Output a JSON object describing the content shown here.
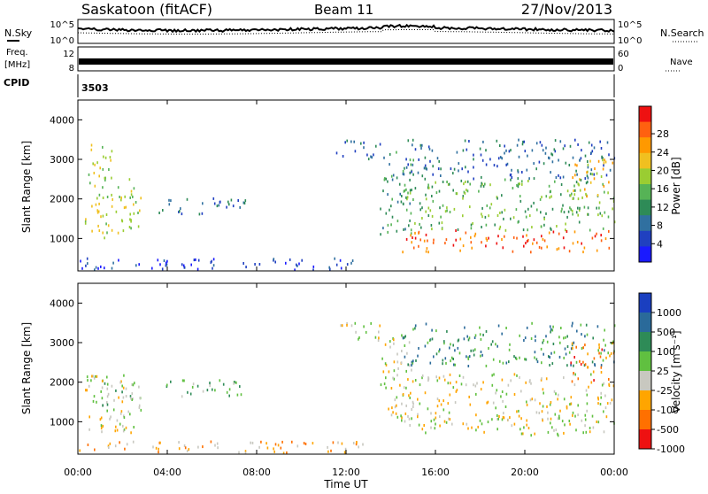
{
  "header": {
    "station": "Saskatoon (fitACF)",
    "beam": "Beam 11",
    "date": "27/Nov/2013"
  },
  "status_panels": {
    "nsky_label": "N.Sky",
    "nsearch_label": "N.Search",
    "noise_ticks": [
      "10^5",
      "10^0"
    ],
    "freq_label_line1": "Freq.",
    "freq_label_line2": "[MHz]",
    "freq_ticks": [
      "12",
      "8"
    ],
    "nave_label": "Nave",
    "nave_ticks": [
      "60",
      "0"
    ],
    "cpid_label": "CPID",
    "cpid_value": "3503"
  },
  "chart_data": [
    {
      "type": "heatmap",
      "name": "power",
      "ylabel": "Slant Range [km]",
      "xlabel": "",
      "ylim": [
        180,
        4500
      ],
      "yticks": [
        1000,
        2000,
        3000,
        4000
      ],
      "colorbar": {
        "label": "Power [dB]",
        "ticks": [
          "4",
          "8",
          "12",
          "16",
          "20",
          "24",
          "28"
        ],
        "colors": [
          "#1a1aff",
          "#2040c0",
          "#3070a0",
          "#2e8b57",
          "#56b356",
          "#9acd32",
          "#f0c020",
          "#ff9900",
          "#ff6010",
          "#ee1111"
        ]
      },
      "regions": [
        {
          "t0": 0.3,
          "t1": 2.8,
          "r0": 1000,
          "r1": 2500,
          "level": 5
        },
        {
          "t0": 0.2,
          "t1": 1.5,
          "r0": 2500,
          "r1": 3400,
          "level": 5
        },
        {
          "t0": 3.6,
          "t1": 7.5,
          "r0": 1600,
          "r1": 2050,
          "level": 2
        },
        {
          "t0": 0.0,
          "t1": 12.5,
          "r0": 200,
          "r1": 500,
          "level": 1
        },
        {
          "t0": 11.5,
          "t1": 13.5,
          "r0": 3000,
          "r1": 3500,
          "level": 2
        },
        {
          "t0": 13.5,
          "t1": 15.0,
          "r0": 1100,
          "r1": 3200,
          "level": 3
        },
        {
          "t0": 14.5,
          "t1": 24.0,
          "r0": 650,
          "r1": 1200,
          "level": 8
        },
        {
          "t0": 14.5,
          "t1": 24.0,
          "r0": 1200,
          "r1": 2500,
          "level": 4
        },
        {
          "t0": 14.5,
          "t1": 24.0,
          "r0": 2500,
          "r1": 3500,
          "level": 2
        },
        {
          "t0": 22.0,
          "t1": 24.0,
          "r0": 2000,
          "r1": 3000,
          "level": 6
        }
      ]
    },
    {
      "type": "heatmap",
      "name": "velocity",
      "ylabel": "Slant Range [km]",
      "xlabel": "Time UT",
      "ylim": [
        180,
        4500
      ],
      "yticks": [
        1000,
        2000,
        3000,
        4000
      ],
      "xticks": [
        "00:00",
        "04:00",
        "08:00",
        "12:00",
        "16:00",
        "20:00",
        "00:00"
      ],
      "colorbar": {
        "label": "Velocity [m s⁻¹]",
        "ticks": [
          "1000",
          "500",
          "100",
          "25",
          "-25",
          "-100",
          "-500",
          "-1000"
        ],
        "colors": [
          "#1a3fc0",
          "#2a6a9a",
          "#2e8b57",
          "#60c040",
          "#c8c8c0",
          "#ffa500",
          "#ff7000",
          "#ee1111"
        ]
      },
      "regions": [
        {
          "t0": 0.3,
          "t1": 2.5,
          "r0": 700,
          "r1": 2200,
          "level": 4
        },
        {
          "t0": 0.5,
          "t1": 2.8,
          "r0": 1200,
          "r1": 2000,
          "level": 3
        },
        {
          "t0": 3.6,
          "t1": 7.5,
          "r0": 1600,
          "r1": 2050,
          "level": 3
        },
        {
          "t0": 0.0,
          "t1": 13.0,
          "r0": 200,
          "r1": 500,
          "level": 5
        },
        {
          "t0": 11.5,
          "t1": 13.5,
          "r0": 3000,
          "r1": 3500,
          "level": 4
        },
        {
          "t0": 13.5,
          "t1": 15.0,
          "r0": 1000,
          "r1": 3200,
          "level": 4
        },
        {
          "t0": 14.5,
          "t1": 24.0,
          "r0": 650,
          "r1": 2200,
          "level": 4
        },
        {
          "t0": 14.5,
          "t1": 24.0,
          "r0": 2400,
          "r1": 3500,
          "level": 2
        },
        {
          "t0": 22.0,
          "t1": 24.0,
          "r0": 2000,
          "r1": 3000,
          "level": 6
        }
      ]
    }
  ]
}
